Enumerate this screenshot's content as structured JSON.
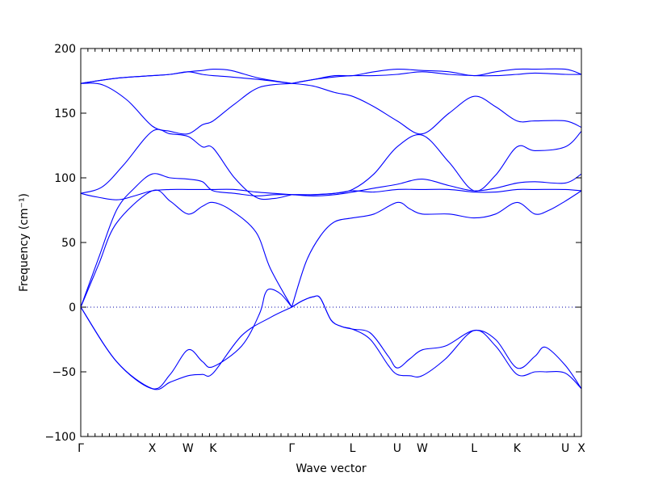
{
  "chart_data": {
    "type": "line",
    "title": "",
    "xlabel": "Wave vector",
    "ylabel": "Frequency (cm⁻¹)",
    "ylim": [
      -100,
      200
    ],
    "xlim": [
      0,
      14
    ],
    "yticks": [
      -100,
      -50,
      0,
      50,
      100,
      150,
      200
    ],
    "ytick_labels": [
      "−100",
      "−50",
      "0",
      "50",
      "100",
      "150",
      "200"
    ],
    "xticks": [
      {
        "label": "Γ",
        "x": 0
      },
      {
        "label": "X",
        "x": 2
      },
      {
        "label": "W",
        "x": 3
      },
      {
        "label": "K",
        "x": 3.7
      },
      {
        "label": "Γ",
        "x": 5.9
      },
      {
        "label": "L",
        "x": 7.6
      },
      {
        "label": "U",
        "x": 8.85
      },
      {
        "label": "W",
        "x": 9.55
      },
      {
        "label": "L",
        "x": 11
      },
      {
        "label": "K",
        "x": 12.2
      },
      {
        "label": "U",
        "x": 13.55
      },
      {
        "label": "X",
        "x": 14
      }
    ],
    "minor_tick_step": 0.2,
    "zero_line": true,
    "line_color": "#0000ff",
    "series": [
      {
        "x": [
          0,
          1,
          2,
          2.5,
          3,
          3.4,
          3.7,
          4.5,
          5.3,
          5.9
        ],
        "y": [
          0,
          -42,
          -63,
          -58,
          -53,
          -52,
          -51,
          -22,
          -8,
          0
        ]
      },
      {
        "x": [
          0,
          1,
          2,
          2.5,
          3,
          3.4,
          3.7,
          4.5,
          5.0,
          5.15,
          5.3,
          5.6,
          5.9
        ],
        "y": [
          0,
          -42,
          -63,
          -52,
          -33,
          -42,
          -46,
          -30,
          -5,
          10,
          14,
          10,
          0
        ]
      },
      {
        "x": [
          0,
          0.5,
          1,
          1.5,
          2,
          2.5,
          3,
          3.4,
          3.7,
          4.3,
          4.9,
          5.4,
          5.9
        ],
        "y": [
          0,
          38,
          75,
          92,
          103,
          100,
          99,
          97,
          90,
          88,
          86,
          87,
          87
        ]
      },
      {
        "x": [
          0,
          0.5,
          1,
          2,
          2.5,
          3,
          3.4,
          3.7,
          4.2,
          4.9,
          5.3,
          5.9
        ],
        "y": [
          0,
          33,
          65,
          90,
          82,
          72,
          78,
          81,
          75,
          58,
          30,
          0
        ]
      },
      {
        "x": [
          0,
          0.3,
          1,
          1.5,
          2,
          2.5,
          3,
          3.4,
          3.7,
          4.3,
          4.9,
          5.4,
          5.9
        ],
        "y": [
          88,
          86,
          83,
          86,
          90,
          91,
          91,
          91,
          91,
          91,
          89,
          88,
          87
        ]
      },
      {
        "x": [
          0,
          0.6,
          1.2,
          2,
          2.5,
          3,
          3.4,
          3.7,
          4.3,
          4.9,
          5.4,
          5.9
        ],
        "y": [
          88,
          93,
          110,
          136,
          134,
          132,
          124,
          123,
          100,
          85,
          84,
          87
        ]
      },
      {
        "x": [
          0,
          0.6,
          1.3,
          2,
          2.5,
          3,
          3.4,
          3.7,
          4.3,
          5.0,
          5.9
        ],
        "y": [
          173,
          172,
          160,
          140,
          136,
          134,
          141,
          144,
          157,
          170,
          173
        ]
      },
      {
        "x": [
          0,
          1,
          2,
          2.5,
          3,
          3.4,
          3.7,
          4.2,
          5.0,
          5.9
        ],
        "y": [
          173,
          177,
          179,
          180,
          182,
          183,
          184,
          183,
          177,
          173
        ]
      },
      {
        "x": [
          0,
          1,
          2,
          2.5,
          3,
          3.4,
          3.7,
          4.2,
          5.0,
          5.9
        ],
        "y": [
          173,
          177,
          179,
          180,
          182,
          180,
          179,
          178,
          176,
          173
        ]
      },
      {
        "x": [
          5.9,
          6.2,
          6.5,
          6.7,
          7,
          7.3,
          7.6,
          8.1,
          8.6,
          8.85,
          9.2,
          9.55,
          10.2,
          11,
          11.6,
          12.2,
          12.7,
          13,
          13.55,
          14
        ],
        "y": [
          0,
          5,
          8,
          7,
          -10,
          -15,
          -17,
          -20,
          -38,
          -47,
          -40,
          -33,
          -30,
          -18,
          -25,
          -47,
          -38,
          -31,
          -45,
          -63
        ]
      },
      {
        "x": [
          5.9,
          6.2,
          6.5,
          6.7,
          7,
          7.3,
          7.6,
          8.1,
          8.6,
          8.85,
          9.2,
          9.55,
          10.2,
          11,
          11.6,
          12.2,
          12.7,
          13,
          13.55,
          14
        ],
        "y": [
          0,
          5,
          8,
          7,
          -10,
          -15,
          -17,
          -25,
          -45,
          -52,
          -53,
          -53,
          -40,
          -18,
          -30,
          -52,
          -50,
          -50,
          -51,
          -63
        ]
      },
      {
        "x": [
          5.9,
          6.3,
          6.7,
          7.1,
          7.6,
          8.2,
          8.85,
          9.2,
          9.55,
          10.3,
          11,
          11.6,
          12.2,
          12.7,
          13.1,
          13.55,
          14
        ],
        "y": [
          0,
          35,
          55,
          66,
          69,
          72,
          81,
          76,
          72,
          72,
          69,
          72,
          81,
          72,
          75,
          82,
          90
        ]
      },
      {
        "x": [
          5.9,
          6.5,
          7.1,
          7.6,
          8.2,
          8.85,
          9.55,
          10.3,
          11,
          11.6,
          12.2,
          12.7,
          13.55,
          14
        ],
        "y": [
          87,
          86,
          87,
          89,
          92,
          95,
          99,
          94,
          90,
          92,
          96,
          97,
          96,
          103
        ]
      },
      {
        "x": [
          5.9,
          6.5,
          7.1,
          7.6,
          8.2,
          8.85,
          9.55,
          10.3,
          11,
          11.6,
          12.2,
          12.7,
          13.55,
          14
        ],
        "y": [
          87,
          87,
          88,
          90,
          89,
          91,
          91,
          91,
          89,
          89,
          91,
          91,
          91,
          90
        ]
      },
      {
        "x": [
          5.9,
          6.5,
          7.1,
          7.6,
          8.2,
          8.85,
          9.55,
          10.3,
          11,
          11.6,
          12.2,
          12.7,
          13.55,
          14
        ],
        "y": [
          87,
          87,
          88,
          91,
          103,
          124,
          133,
          112,
          90,
          102,
          124,
          121,
          124,
          136
        ]
      },
      {
        "x": [
          5.9,
          6.5,
          7.1,
          7.6,
          8.2,
          8.85,
          9.55,
          10.3,
          11,
          11.6,
          12.2,
          12.7,
          13.55,
          14
        ],
        "y": [
          173,
          171,
          166,
          163,
          155,
          144,
          134,
          150,
          163,
          155,
          144,
          144,
          144,
          139
        ]
      },
      {
        "x": [
          5.9,
          6.5,
          7.1,
          7.6,
          8.2,
          8.85,
          9.55,
          10.3,
          11,
          11.6,
          12.2,
          12.7,
          13.55,
          14
        ],
        "y": [
          173,
          176,
          179,
          179,
          182,
          184,
          183,
          182,
          179,
          182,
          184,
          184,
          184,
          180
        ]
      },
      {
        "x": [
          5.9,
          6.5,
          7.1,
          7.6,
          8.2,
          8.85,
          9.55,
          10.3,
          11,
          11.6,
          12.2,
          12.7,
          13.55,
          14
        ],
        "y": [
          173,
          176,
          178,
          179,
          179,
          180,
          182,
          180,
          179,
          179,
          180,
          181,
          180,
          180
        ]
      }
    ]
  }
}
